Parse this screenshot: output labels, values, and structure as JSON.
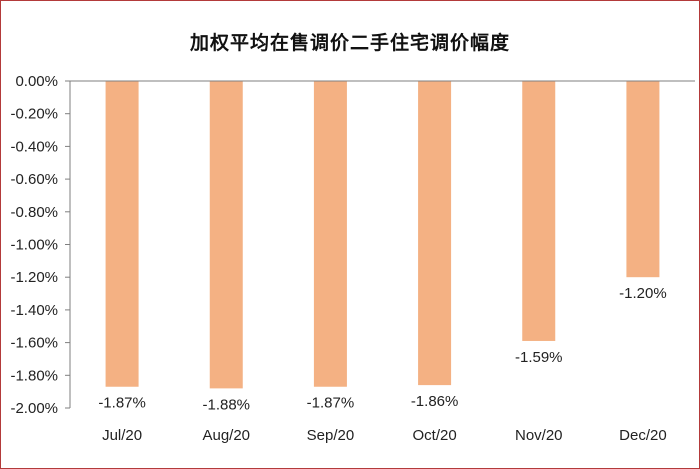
{
  "chart_data": {
    "type": "bar",
    "title": "加权平均在售调价二手住宅调价幅度",
    "categories": [
      "Jul/20",
      "Aug/20",
      "Sep/20",
      "Oct/20",
      "Nov/20",
      "Dec/20"
    ],
    "values": [
      -1.87,
      -1.88,
      -1.87,
      -1.86,
      -1.59,
      -1.2
    ],
    "data_labels": [
      "-1.87%",
      "-1.88%",
      "-1.87%",
      "-1.86%",
      "-1.59%",
      "-1.20%"
    ],
    "y_ticks": [
      0,
      -0.2,
      -0.4,
      -0.6,
      -0.8,
      -1.0,
      -1.2,
      -1.4,
      -1.6,
      -1.8,
      -2.0
    ],
    "y_tick_labels": [
      "0.00%",
      "-0.20%",
      "-0.40%",
      "-0.60%",
      "-0.80%",
      "-1.00%",
      "-1.20%",
      "-1.40%",
      "-1.60%",
      "-1.80%",
      "-2.00%"
    ],
    "ylim": [
      -2.0,
      0
    ],
    "xlabel": "",
    "ylabel": "",
    "grid": false,
    "legend": "none",
    "bar_color": "#f4b183",
    "border_color": "#b33a3a"
  }
}
